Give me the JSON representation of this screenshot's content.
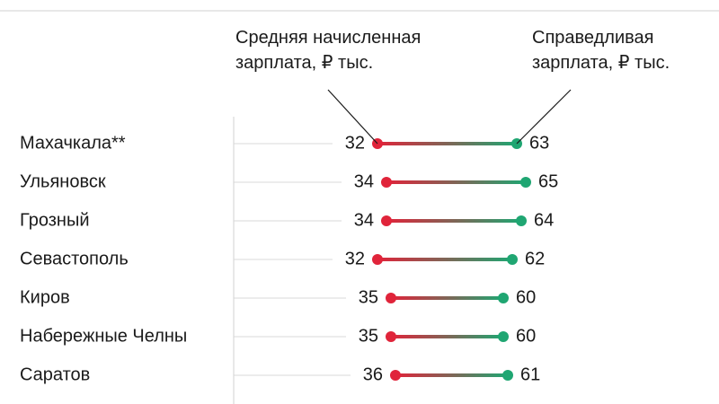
{
  "chart_data": {
    "type": "dumbbell",
    "categories": [
      "Махачкала**",
      "Ульяновск",
      "Грозный",
      "Севастополь",
      "Киров",
      "Набережные Челны",
      "Саратов"
    ],
    "series": [
      {
        "name": "Средняя начисленная зарплата, ₽ тыс.",
        "color": "#e0243a",
        "values": [
          32,
          34,
          34,
          32,
          35,
          35,
          36
        ]
      },
      {
        "name": "Справедливая зарплата, ₽ тыс.",
        "color": "#1fa672",
        "values": [
          63,
          65,
          64,
          62,
          60,
          60,
          61
        ]
      }
    ],
    "xlim": [
      0,
      100
    ]
  }
}
